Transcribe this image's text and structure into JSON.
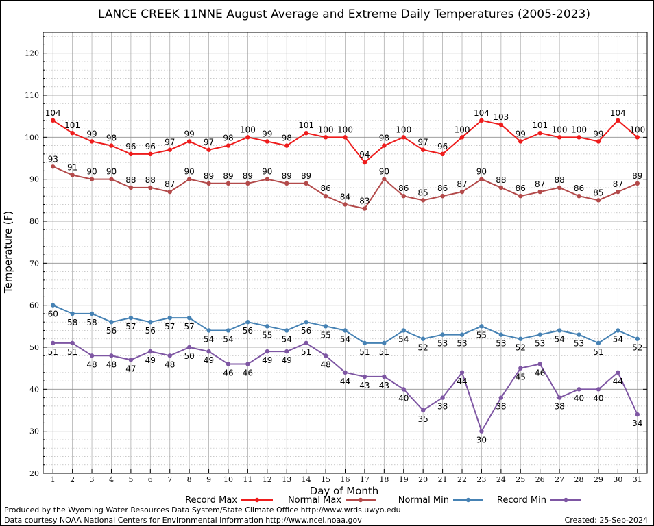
{
  "chart_data": {
    "type": "line",
    "title": "LANCE CREEK 11NNE August Average and Extreme Daily Temperatures (2005-2023)",
    "xlabel": "Day of Month",
    "ylabel": "Temperature (F)",
    "ylim": [
      20,
      125
    ],
    "y_ticks": [
      20,
      30,
      40,
      50,
      60,
      70,
      80,
      90,
      100,
      110,
      120
    ],
    "x": [
      1,
      2,
      3,
      4,
      5,
      6,
      7,
      8,
      9,
      10,
      11,
      12,
      13,
      14,
      15,
      16,
      17,
      18,
      19,
      20,
      21,
      22,
      23,
      24,
      25,
      26,
      27,
      28,
      29,
      30,
      31
    ],
    "grid": true,
    "legend_position": "bottom",
    "series": [
      {
        "name": "Record Max",
        "color": "#ee1c1c",
        "label_position": "above",
        "values": [
          104,
          101,
          99,
          98,
          96,
          96,
          97,
          99,
          97,
          98,
          100,
          99,
          98,
          101,
          100,
          100,
          94,
          98,
          100,
          97,
          96,
          100,
          104,
          103,
          99,
          101,
          100,
          100,
          99,
          104,
          100
        ]
      },
      {
        "name": "Normal Max",
        "color": "#b34a4a",
        "label_position": "above",
        "values": [
          93,
          91,
          90,
          90,
          88,
          88,
          87,
          90,
          89,
          89,
          89,
          90,
          89,
          89,
          86,
          84,
          83,
          90,
          86,
          85,
          86,
          87,
          90,
          88,
          86,
          87,
          88,
          86,
          85,
          87,
          89
        ]
      },
      {
        "name": "Normal Min",
        "color": "#4682b4",
        "label_position": "below",
        "values": [
          60,
          58,
          58,
          56,
          57,
          56,
          57,
          57,
          54,
          54,
          56,
          55,
          54,
          56,
          55,
          54,
          51,
          51,
          54,
          52,
          53,
          53,
          55,
          53,
          52,
          53,
          54,
          53,
          51,
          54,
          52
        ]
      },
      {
        "name": "Record Min",
        "color": "#7e56a3",
        "label_position": "below",
        "values": [
          51,
          51,
          48,
          48,
          47,
          49,
          48,
          50,
          49,
          46,
          46,
          49,
          49,
          51,
          48,
          44,
          43,
          43,
          40,
          35,
          38,
          44,
          30,
          38,
          45,
          46,
          38,
          40,
          40,
          44,
          34
        ]
      }
    ]
  },
  "footer": {
    "produced_by": "Produced by the Wyoming Water Resources Data System/State Climate Office http://www.wrds.uwyo.edu",
    "courtesy": "Data courtesy NOAA National Centers for Environmental Information http://www.ncei.noaa.gov",
    "created": "Created: 25-Sep-2024"
  }
}
